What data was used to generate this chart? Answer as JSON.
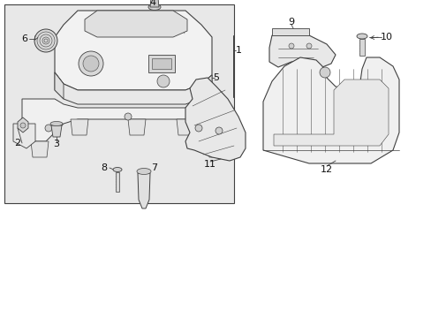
{
  "bg_color": "#ffffff",
  "box_bg": "#f0f0f0",
  "part_bg": "#f5f5f5",
  "line_color": "#404040",
  "text_color": "#111111",
  "lw_main": 0.7,
  "lw_thin": 0.4,
  "fig_w": 4.89,
  "fig_h": 3.6,
  "dpi": 100
}
